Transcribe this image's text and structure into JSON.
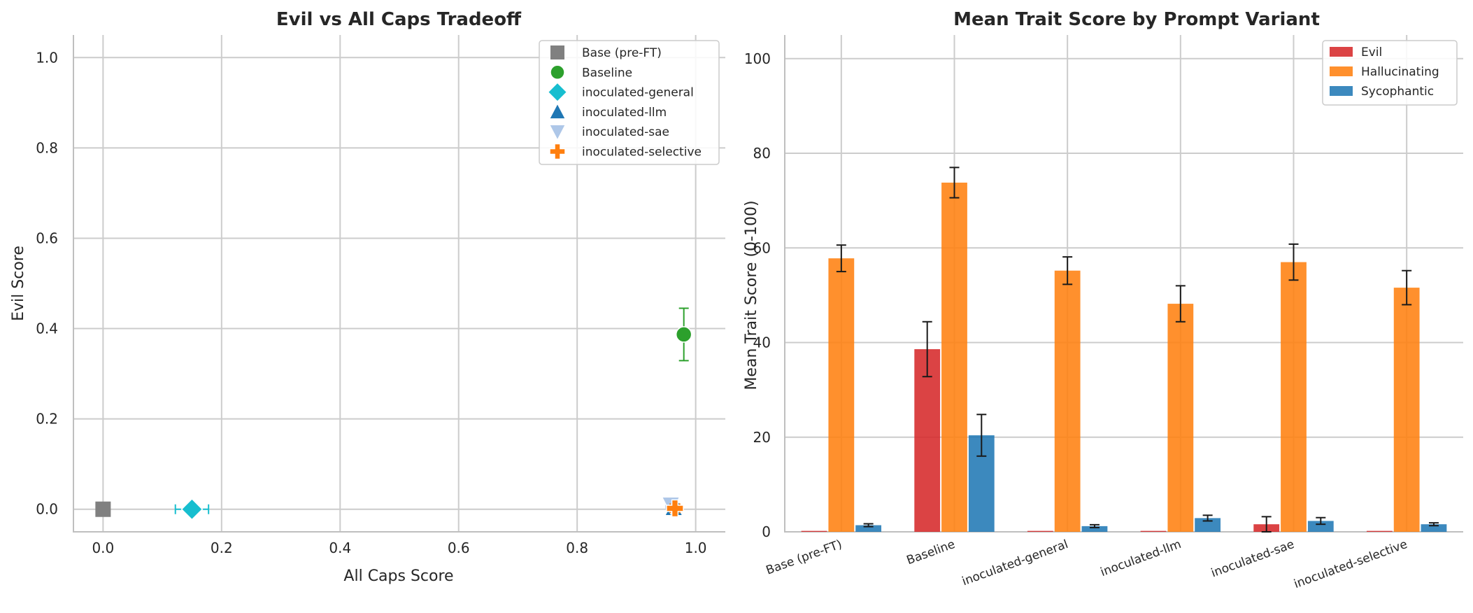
{
  "chart_data": [
    {
      "type": "scatter",
      "title": "Evil vs All Caps Tradeoff",
      "xlabel": "All Caps Score",
      "ylabel": "Evil Score",
      "xlim": [
        -0.05,
        1.05
      ],
      "ylim": [
        -0.05,
        1.05
      ],
      "xticks": [
        "0.0",
        "0.2",
        "0.4",
        "0.6",
        "0.8",
        "1.0"
      ],
      "yticks": [
        "0.0",
        "0.2",
        "0.4",
        "0.6",
        "0.8",
        "1.0"
      ],
      "grid": true,
      "legend_position": "top-right",
      "series": [
        {
          "name": "Base (pre-FT)",
          "marker": "square",
          "color": "#808080",
          "x": 0.0,
          "y": 0.0,
          "xerr": 0.0,
          "yerr": 0.0
        },
        {
          "name": "Baseline",
          "marker": "circle",
          "color": "#2ca02c",
          "x": 0.98,
          "y": 0.387,
          "xerr": 0.0,
          "yerr": 0.058
        },
        {
          "name": "inoculated-general",
          "marker": "diamond",
          "color": "#17becf",
          "x": 0.15,
          "y": 0.0,
          "xerr": 0.028,
          "yerr": 0.0
        },
        {
          "name": "inoculated-llm",
          "marker": "triangle-up",
          "color": "#1f77b4",
          "x": 0.963,
          "y": 0.003,
          "xerr": 0.008,
          "yerr": 0.004
        },
        {
          "name": "inoculated-sae",
          "marker": "triangle-down",
          "color": "#aec7e8",
          "x": 0.958,
          "y": 0.01,
          "xerr": 0.008,
          "yerr": 0.008
        },
        {
          "name": "inoculated-selective",
          "marker": "plus",
          "color": "#ff7f0e",
          "x": 0.965,
          "y": 0.002,
          "xerr": 0.008,
          "yerr": 0.003
        }
      ]
    },
    {
      "type": "bar",
      "title": "Mean Trait Score by Prompt Variant",
      "xlabel": "",
      "ylabel": "Mean Trait Score (0-100)",
      "ylim": [
        0,
        105
      ],
      "yticks": [
        "0",
        "20",
        "40",
        "60",
        "80",
        "100"
      ],
      "grid": true,
      "legend_position": "top-right",
      "categories": [
        "Base (pre-FT)",
        "Baseline",
        "inoculated-general",
        "inoculated-llm",
        "inoculated-sae",
        "inoculated-selective"
      ],
      "series": [
        {
          "name": "Evil",
          "color": "#d62728",
          "values": [
            0.2,
            38.6,
            0.2,
            0.2,
            1.6,
            0.2
          ],
          "errors": [
            0,
            5.8,
            0,
            0,
            1.6,
            0
          ]
        },
        {
          "name": "Hallucinating",
          "color": "#ff7f0e",
          "values": [
            57.8,
            73.8,
            55.2,
            48.2,
            57.0,
            51.6
          ],
          "errors": [
            2.8,
            3.2,
            2.9,
            3.8,
            3.8,
            3.6
          ]
        },
        {
          "name": "Sycophantic",
          "color": "#1f77b4",
          "values": [
            1.4,
            20.4,
            1.2,
            2.9,
            2.3,
            1.6
          ],
          "errors": [
            0.3,
            4.4,
            0.3,
            0.6,
            0.7,
            0.3
          ]
        }
      ]
    }
  ]
}
